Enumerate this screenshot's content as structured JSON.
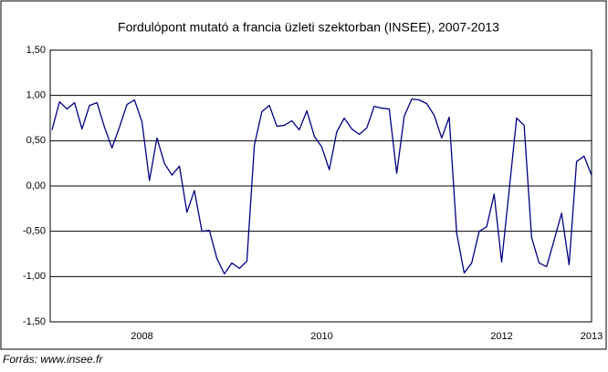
{
  "chart_data": {
    "type": "line",
    "title": "Fordulópont mutató a francia üzleti szektorban (INSEE), 2007-2013",
    "source": "Forrás: www.insee.fr",
    "categories": [
      null,
      null,
      null,
      null,
      null,
      null,
      null,
      null,
      null,
      null,
      null,
      null,
      "2008",
      null,
      null,
      null,
      null,
      null,
      null,
      null,
      null,
      null,
      null,
      null,
      null,
      null,
      null,
      null,
      null,
      null,
      null,
      null,
      null,
      null,
      null,
      null,
      "2010",
      null,
      null,
      null,
      null,
      null,
      null,
      null,
      null,
      null,
      null,
      null,
      null,
      null,
      null,
      null,
      null,
      null,
      null,
      null,
      null,
      null,
      null,
      null,
      "2012",
      null,
      null,
      null,
      null,
      null,
      null,
      null,
      null,
      null,
      null,
      null,
      "2013"
    ],
    "series": [
      {
        "name": "Fordulópont mutató",
        "color": "#000080",
        "values": [
          0.62,
          0.93,
          0.85,
          0.92,
          0.63,
          0.89,
          0.92,
          0.65,
          0.42,
          0.65,
          0.9,
          0.95,
          0.71,
          0.06,
          0.53,
          0.25,
          0.12,
          0.22,
          -0.29,
          -0.05,
          -0.5,
          -0.49,
          -0.8,
          -0.97,
          -0.85,
          -0.91,
          -0.83,
          0.45,
          0.82,
          0.89,
          0.66,
          0.67,
          0.72,
          0.62,
          0.83,
          0.55,
          0.43,
          0.18,
          0.6,
          0.75,
          0.63,
          0.57,
          0.64,
          0.88,
          0.86,
          0.85,
          0.14,
          0.77,
          0.96,
          0.95,
          0.91,
          0.78,
          0.53,
          0.76,
          -0.52,
          -0.96,
          -0.85,
          -0.5,
          -0.45,
          -0.09,
          -0.84,
          -0.05,
          0.75,
          0.67,
          -0.57,
          -0.85,
          -0.89,
          -0.6,
          -0.3,
          -0.87,
          0.27,
          0.33,
          0.12
        ]
      }
    ],
    "ylim": [
      -1.5,
      1.5
    ],
    "yticks": [
      {
        "value": -1.5,
        "label": "-1,50"
      },
      {
        "value": -1.0,
        "label": "-1,00"
      },
      {
        "value": -0.5,
        "label": "-0,50"
      },
      {
        "value": 0,
        "label": "0,00"
      },
      {
        "value": 0.5,
        "label": "0,50"
      },
      {
        "value": 1.0,
        "label": "1,00"
      },
      {
        "value": 1.5,
        "label": "1,50"
      }
    ],
    "grid": true
  }
}
